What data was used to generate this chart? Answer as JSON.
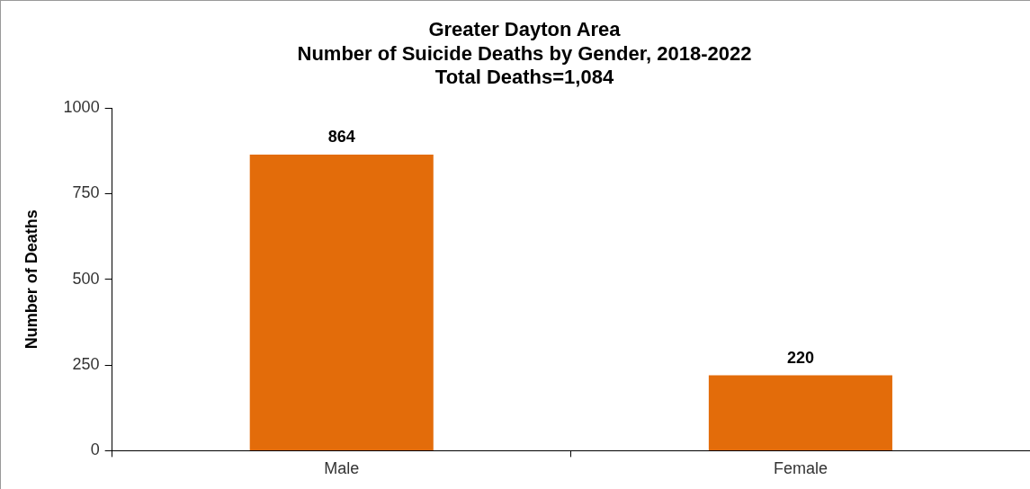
{
  "chart_data": {
    "type": "bar",
    "title": "Greater Dayton Area\nNumber of Suicide Deaths by Gender, 2018-2022\nTotal Deaths=1,084",
    "ylabel": "Number of Deaths",
    "categories": [
      "Male",
      "Female"
    ],
    "values": [
      864,
      220
    ],
    "color": "#e36c0a",
    "ylim": [
      0,
      1000
    ],
    "yticks": [
      0,
      250,
      500,
      750,
      1000
    ],
    "grid": false,
    "data_labels": true
  }
}
